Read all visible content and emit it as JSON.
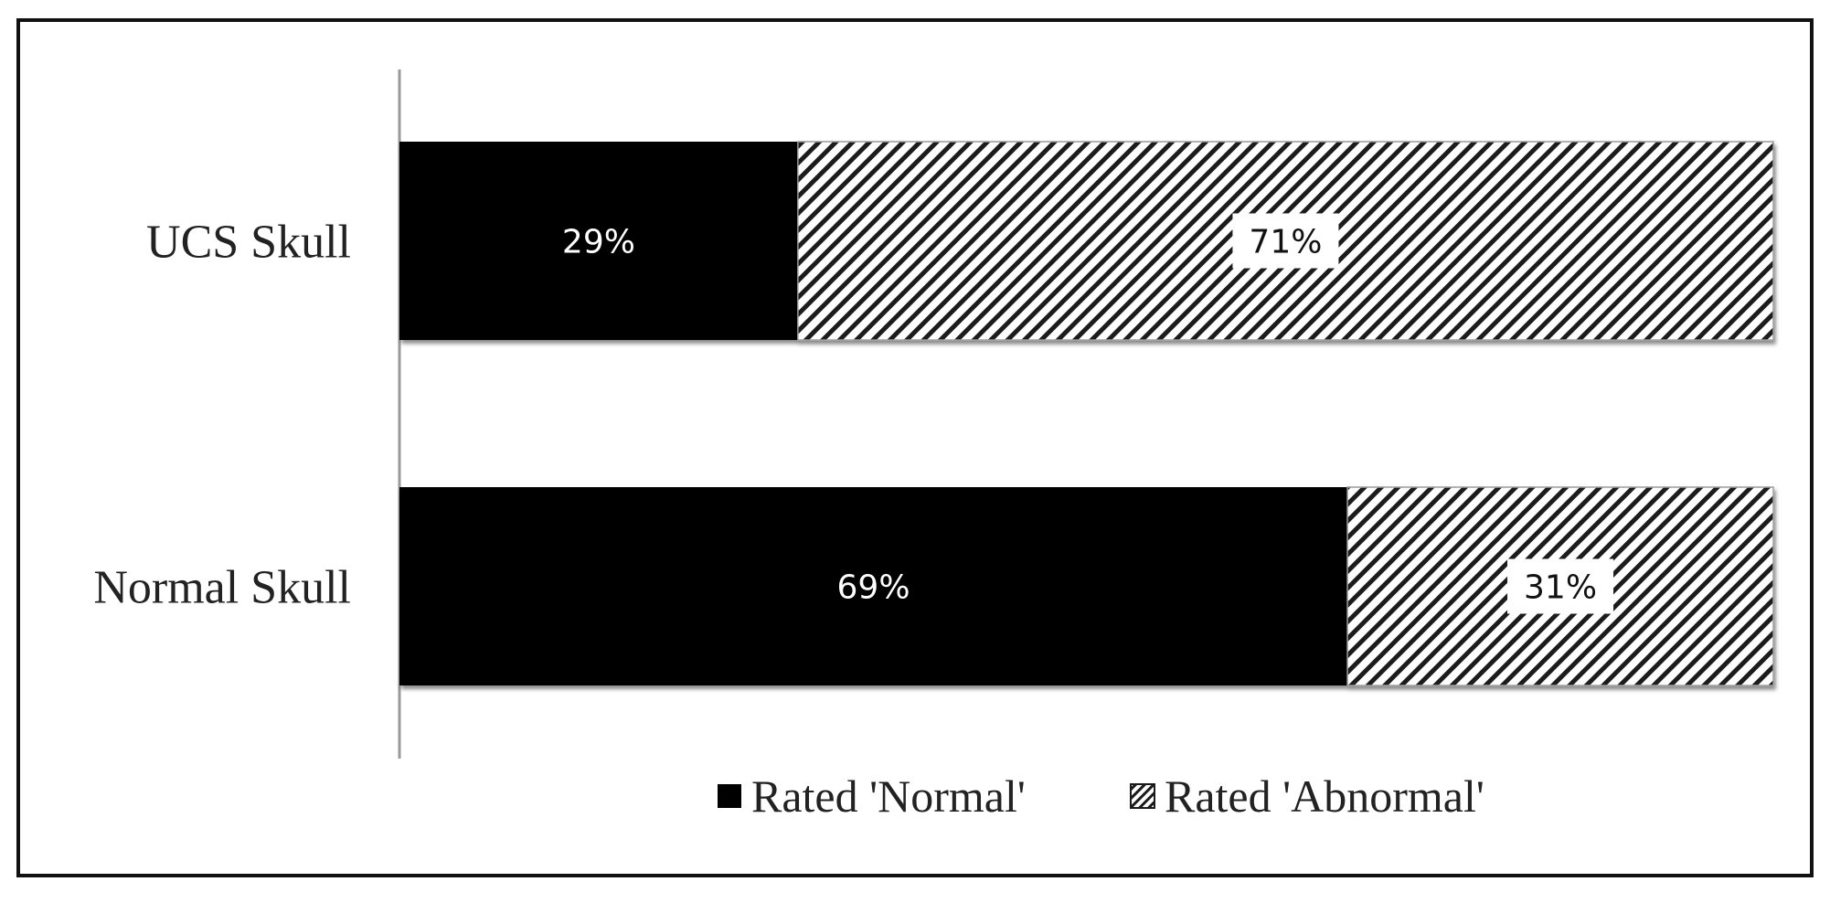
{
  "chart_data": {
    "type": "bar",
    "orientation": "horizontal",
    "stacked": true,
    "percent_scale": true,
    "categories": [
      "UCS Skull",
      "Normal Skull"
    ],
    "series": [
      {
        "name": "Rated 'Normal'",
        "values": [
          29,
          69
        ],
        "labels": [
          "29%",
          "69%"
        ],
        "color": "#000000",
        "fill": "solid"
      },
      {
        "name": "Rated 'Abnormal'",
        "values": [
          71,
          31
        ],
        "labels": [
          "71%",
          "31%"
        ],
        "color": "#000000",
        "fill": "diagonal-hatch"
      }
    ],
    "xlim": [
      0,
      100
    ],
    "grid": false,
    "legend": "bottom"
  }
}
